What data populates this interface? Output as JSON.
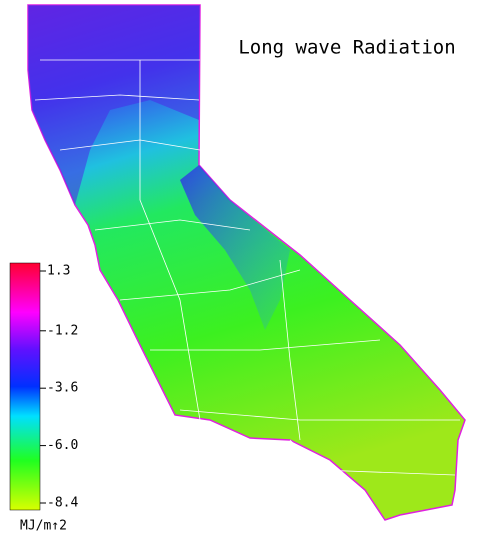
{
  "title": "Long wave Radiation",
  "colorbar": {
    "lim": [
      -8.4,
      1.3
    ],
    "ticks": [
      1.3,
      -1.2,
      -3.6,
      {
        "value": -6,
        "label": "-6.0"
      },
      -8.4
    ],
    "unit": "MJ/m↑2"
  }
}
